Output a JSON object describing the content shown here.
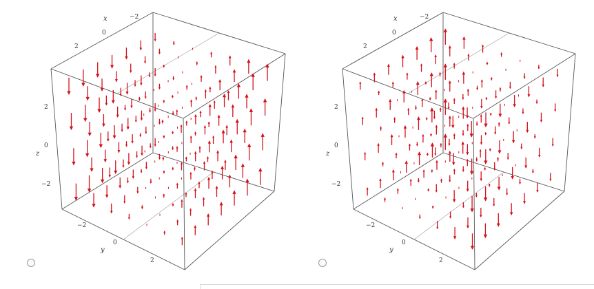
{
  "colors": {
    "arrow": "#d4111b",
    "frame": "#555555",
    "label": "#333333"
  },
  "plots": [
    {
      "axis_names": {
        "x": "x",
        "y": "y",
        "z": "z"
      },
      "x_ticks": [
        "−2",
        "0",
        "2"
      ],
      "y_ticks": [
        "−2",
        "0",
        "2"
      ],
      "z_ticks": [
        "2",
        "0",
        "−2"
      ],
      "field_variant": "A"
    },
    {
      "axis_names": {
        "x": "x",
        "y": "y",
        "z": "z"
      },
      "x_ticks": [
        "−2",
        "0",
        "2"
      ],
      "y_ticks": [
        "−2",
        "0",
        "2"
      ],
      "z_ticks": [
        "2",
        "0",
        "−2"
      ],
      "field_variant": "B"
    }
  ],
  "options": [
    {
      "selected": false
    },
    {
      "selected": false
    }
  ]
}
